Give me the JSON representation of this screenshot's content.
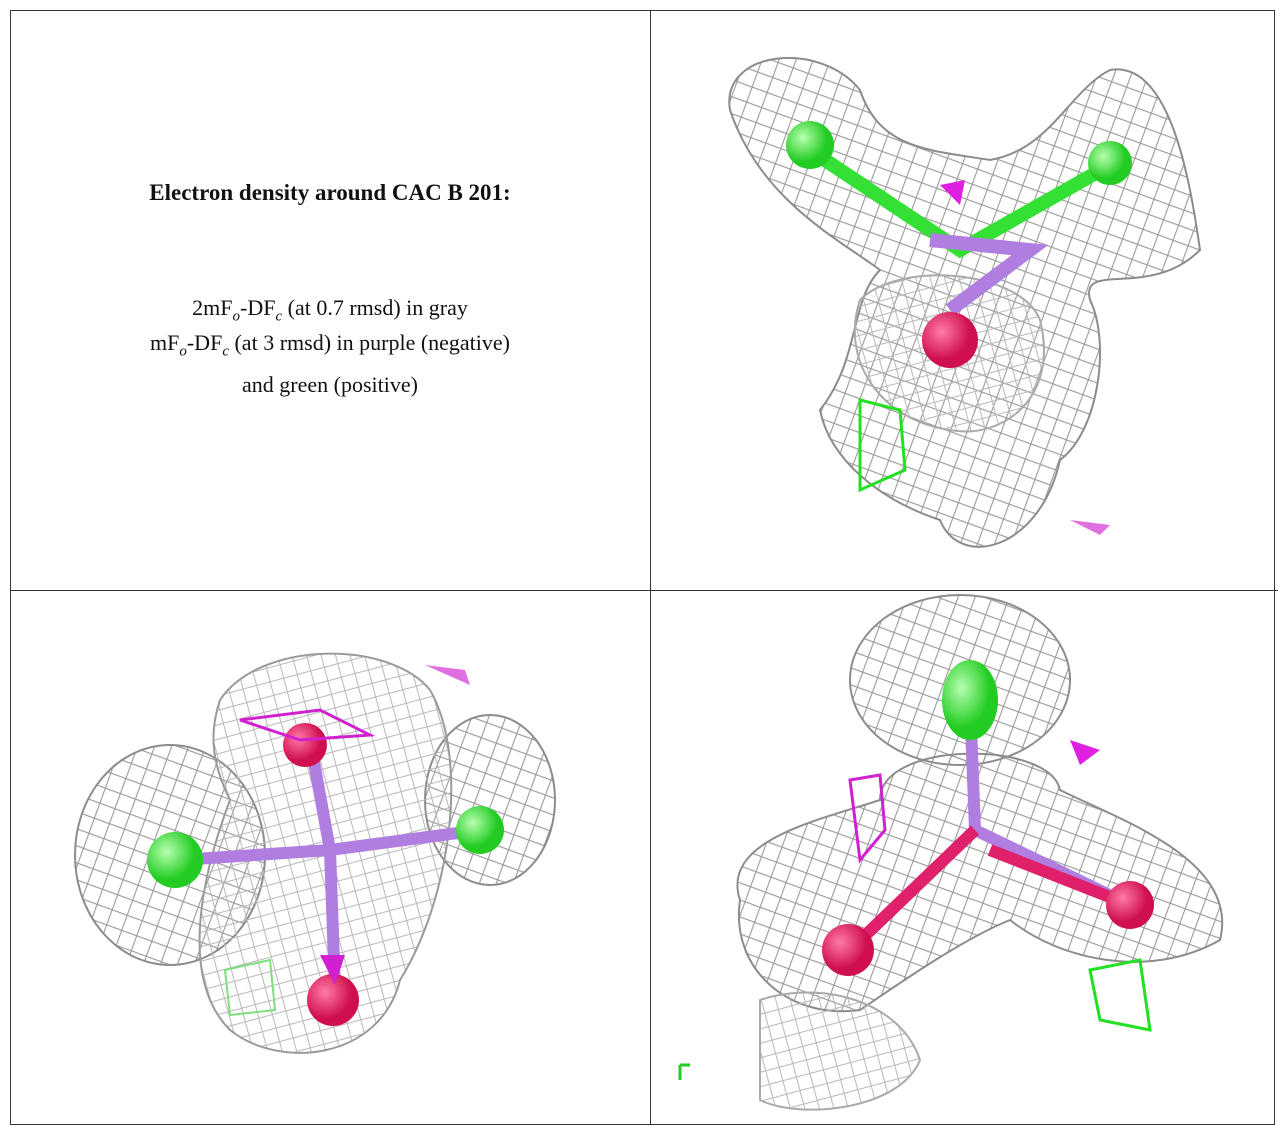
{
  "caption": {
    "title": "Electron density around CAC B 201:",
    "lines": [
      [
        "2mF",
        "o",
        "-DF",
        "c",
        " (at 0.7 rmsd) in gray"
      ],
      [
        "mF",
        "o",
        "-DF",
        "c",
        " (at 3 rmsd) in purple (negative)"
      ],
      [
        "and green (positive)"
      ]
    ]
  }
}
